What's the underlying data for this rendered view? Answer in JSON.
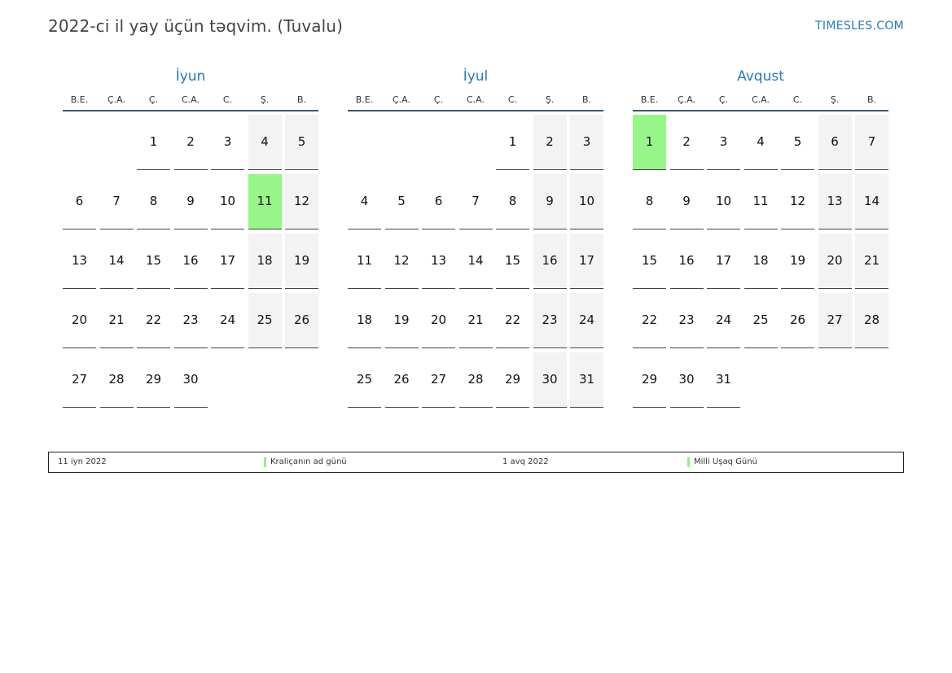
{
  "header": {
    "title": "2022-ci il yay üçün təqvim. (Tuvalu)",
    "brand": "TIMESLES.COM"
  },
  "colors": {
    "accent": "#2a7ab8",
    "holiday": "#98f58a",
    "weekend": "#f3f3f3"
  },
  "weekdays": [
    "B.E.",
    "Ç.A.",
    "Ç.",
    "C.A.",
    "C.",
    "Ş.",
    "B."
  ],
  "months": [
    {
      "name": "İyun",
      "start_offset": 2,
      "days": 30,
      "holidays": [
        11
      ]
    },
    {
      "name": "İyul",
      "start_offset": 4,
      "days": 31,
      "holidays": []
    },
    {
      "name": "Avqust",
      "start_offset": 0,
      "days": 31,
      "holidays": [
        1
      ]
    }
  ],
  "legend": [
    {
      "date": "11 iyn 2022",
      "name": "Kraliçanın ad günü"
    },
    {
      "date": "1 avq 2022",
      "name": "Milli Uşaq Günü"
    }
  ]
}
